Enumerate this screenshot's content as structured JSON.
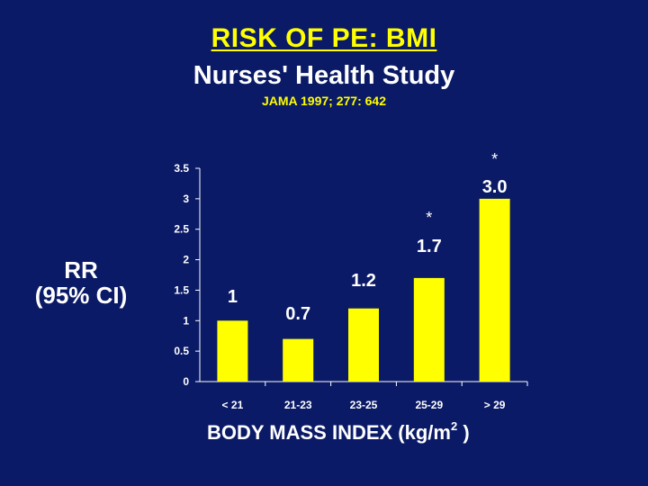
{
  "colors": {
    "background": "#0a1a66",
    "bar": "#ffff00",
    "text": "#ffffff",
    "accent": "#ffff00"
  },
  "header": {
    "title": "RISK OF PE: BMI",
    "subtitle": "Nurses' Health Study",
    "citation": "JAMA 1997; 277: 642"
  },
  "chart_data": {
    "type": "bar",
    "title": "RISK OF PE: BMI",
    "subtitle": "Nurses' Health Study",
    "ylabel_line1": "RR",
    "ylabel_line2": "(95% CI)",
    "xlabel_prefix": "BODY  MASS  INDEX  (kg/m",
    "xlabel_superscript": "2",
    "xlabel_suffix": " )",
    "categories": [
      "< 21",
      "21-23",
      "23-25",
      "25-29",
      "> 29"
    ],
    "values": [
      1,
      0.7,
      1.2,
      1.7,
      3.0
    ],
    "value_labels": [
      "1",
      "0.7",
      "1.2",
      "1.7",
      "3.0"
    ],
    "significance_marks": [
      "",
      "",
      "",
      "*",
      "*"
    ],
    "ylim": [
      0,
      3.5
    ],
    "yticks": [
      "0",
      "0.5",
      "1",
      "1.5",
      "2",
      "2.5",
      "3",
      "3.5"
    ],
    "grid": false,
    "legend": "none"
  }
}
